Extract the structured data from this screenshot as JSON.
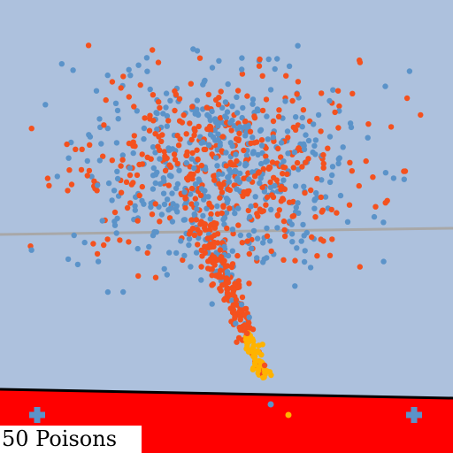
{
  "hud": {
    "poison_count": "50 Poisons"
  },
  "colors": {
    "sky": "#adc1dd",
    "floor": "#ff0000",
    "floor_edge": "#000000",
    "horizon": "#a8a8a8",
    "particle_blue": "#5b93c9",
    "particle_orange": "#f4511e",
    "particle_yellow": "#ffb300",
    "pickup": "#5b93c9"
  },
  "pickups": [
    {
      "name": "health-pickup-left",
      "icon": "plus-icon"
    },
    {
      "name": "health-pickup-right",
      "icon": "plus-icon"
    }
  ]
}
